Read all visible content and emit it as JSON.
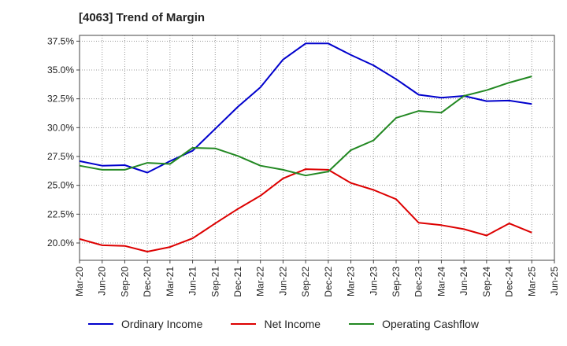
{
  "title": "[4063]  Trend of Margin",
  "chart_data": {
    "type": "line",
    "title": "[4063]  Trend of Margin",
    "xlabel": "",
    "ylabel": "",
    "ylim": [
      18.5,
      38.0
    ],
    "yticks": [
      "20.0%",
      "22.5%",
      "25.0%",
      "27.5%",
      "30.0%",
      "32.5%",
      "35.0%",
      "37.5%"
    ],
    "ytick_values": [
      20.0,
      22.5,
      25.0,
      27.5,
      30.0,
      32.5,
      35.0,
      37.5
    ],
    "x": [
      "Mar-20",
      "Jun-20",
      "Sep-20",
      "Dec-20",
      "Mar-21",
      "Jun-21",
      "Sep-21",
      "Dec-21",
      "Mar-22",
      "Jun-22",
      "Sep-22",
      "Dec-22",
      "Mar-23",
      "Jun-23",
      "Sep-23",
      "Dec-23",
      "Mar-24",
      "Jun-24",
      "Sep-24",
      "Dec-24",
      "Mar-25",
      "Jun-25"
    ],
    "grid": true,
    "legend_position": "bottom",
    "series": [
      {
        "name": "Ordinary Income",
        "color": "#0000cc",
        "values": [
          27.1,
          26.7,
          26.75,
          26.1,
          27.1,
          28.0,
          29.9,
          31.8,
          33.5,
          35.9,
          37.3,
          37.3,
          36.3,
          35.4,
          34.2,
          32.85,
          32.6,
          32.75,
          32.3,
          32.35,
          32.05,
          null
        ]
      },
      {
        "name": "Net Income",
        "color": "#dd0000",
        "values": [
          20.35,
          19.8,
          19.75,
          19.25,
          19.65,
          20.4,
          21.7,
          22.95,
          24.1,
          25.6,
          26.4,
          26.35,
          25.2,
          24.6,
          23.8,
          21.75,
          21.55,
          21.2,
          20.65,
          21.7,
          20.9,
          null
        ]
      },
      {
        "name": "Operating Cashflow",
        "color": "#228822",
        "values": [
          26.7,
          26.35,
          26.35,
          26.95,
          26.85,
          28.25,
          28.2,
          27.55,
          26.7,
          26.35,
          25.85,
          26.2,
          28.05,
          28.9,
          30.85,
          31.45,
          31.3,
          32.75,
          33.25,
          33.9,
          34.45,
          null
        ]
      }
    ]
  }
}
